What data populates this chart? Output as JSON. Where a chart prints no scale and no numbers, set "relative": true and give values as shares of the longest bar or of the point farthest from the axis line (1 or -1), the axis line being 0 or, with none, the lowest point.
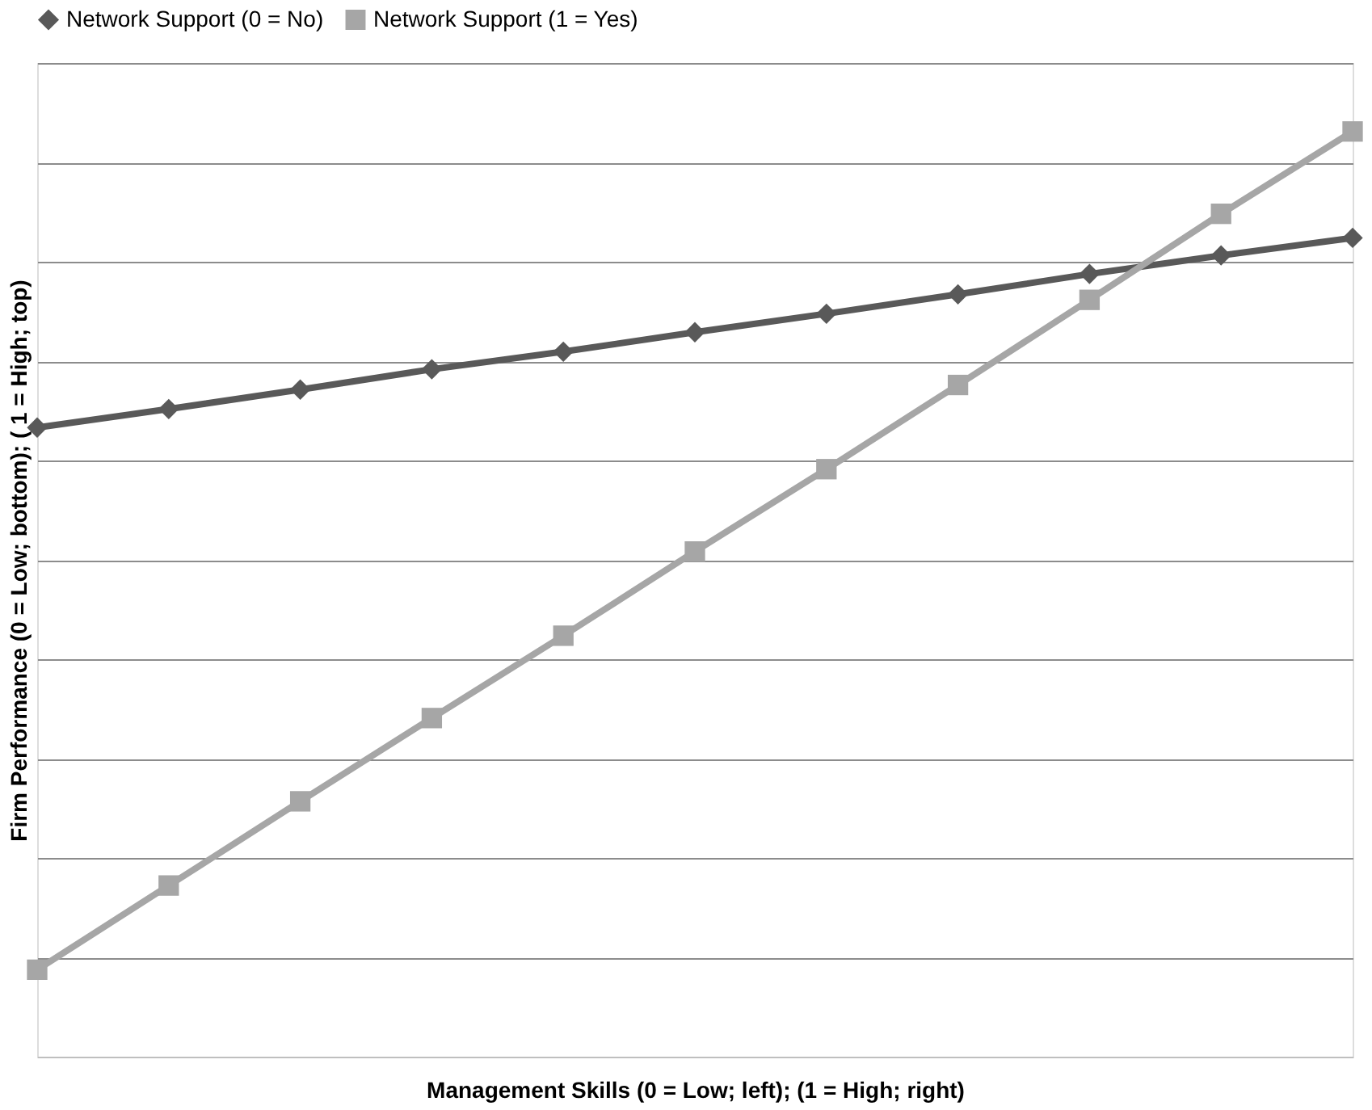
{
  "chart_data": {
    "type": "line",
    "relative": true,
    "xlabel": "Management Skills (0 = Low; left); (1 = High; right)",
    "ylabel": "Firm Performance (0 = Low; bottom);  ( 1 = High; top)",
    "categories": [
      null,
      null,
      null,
      null,
      null,
      null,
      null,
      null,
      null,
      null,
      null
    ],
    "series": [
      {
        "name": "Network Support (0 = No)",
        "color": "#595959",
        "marker": "diamond",
        "values": [
          0.68,
          0.7,
          0.721,
          0.743,
          0.762,
          0.783,
          0.803,
          0.824,
          0.846,
          0.866,
          0.885
        ]
      },
      {
        "name": "Network Support (1 = Yes)",
        "color": "#a6a6a6",
        "marker": "square",
        "values": [
          0.094,
          0.185,
          0.276,
          0.366,
          0.455,
          0.546,
          0.635,
          0.726,
          0.818,
          0.911,
          1.0
        ]
      }
    ],
    "grid": "y",
    "legend": "top",
    "line_style": "solid"
  }
}
